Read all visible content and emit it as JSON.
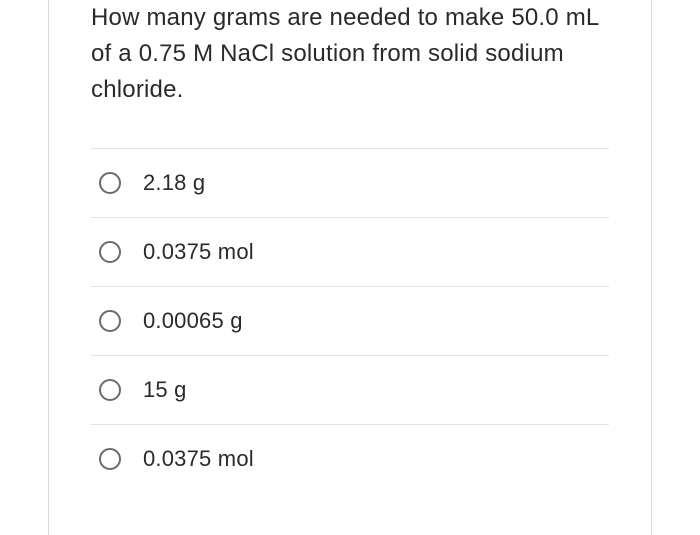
{
  "question": {
    "text": "How many grams are needed to make 50.0 mL of a 0.75 M NaCl solution from solid sodium chloride.",
    "text_color": "#2a2a2a",
    "font_size": 24
  },
  "options": [
    {
      "label": "2.18 g",
      "selected": false
    },
    {
      "label": "0.0375 mol",
      "selected": false
    },
    {
      "label": "0.00065 g",
      "selected": false
    },
    {
      "label": "15 g",
      "selected": false
    },
    {
      "label": "0.0375 mol",
      "selected": false
    }
  ],
  "styling": {
    "border_color": "#d8d8d8",
    "divider_color": "#e3e3e3",
    "radio_border_color": "#6b6b6b",
    "background_color": "#ffffff",
    "option_font_size": 22
  }
}
